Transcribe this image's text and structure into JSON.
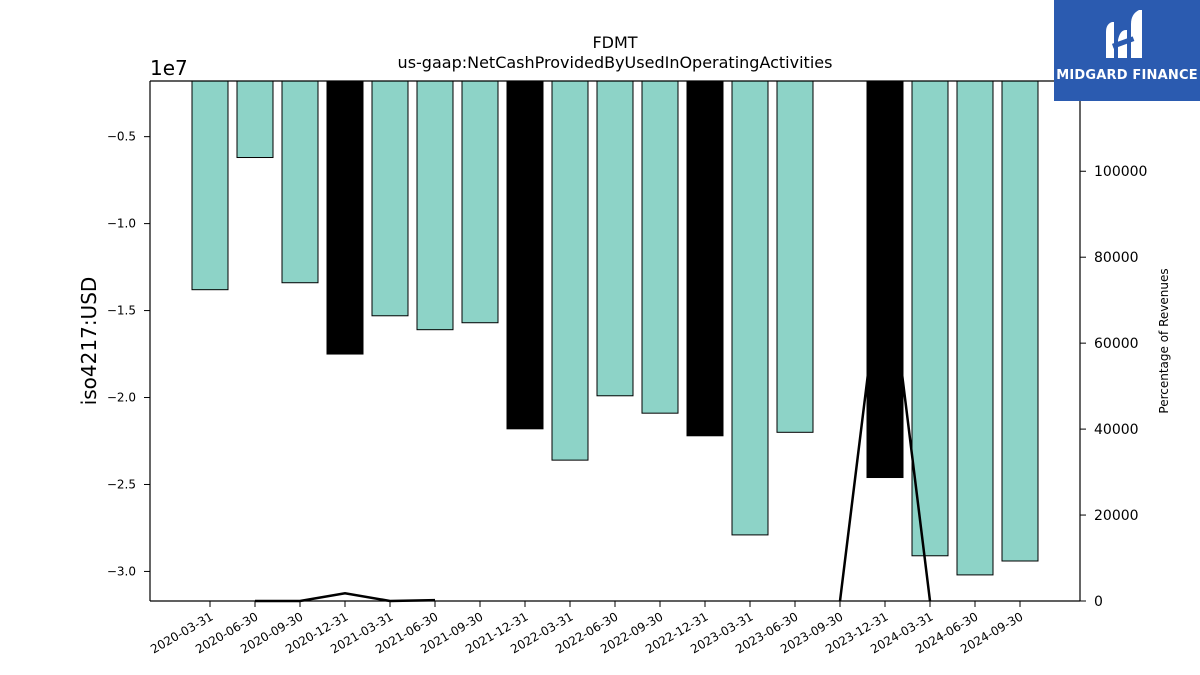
{
  "chart_data": {
    "type": "bar",
    "title": "FDMT",
    "subtitle": "us-gaap:NetCashProvidedByUsedInOperatingActivities",
    "ylabel": "iso4217:USD",
    "y_offset_label": "1e7",
    "y2label": "Percentage of Revenues",
    "categories": [
      "2020-03-31",
      "2020-06-30",
      "2020-09-30",
      "2020-12-31",
      "2021-03-31",
      "2021-06-30",
      "2021-09-30",
      "2021-12-31",
      "2022-03-31",
      "2022-06-30",
      "2022-09-30",
      "2022-12-31",
      "2023-03-31",
      "2023-06-30",
      "2023-09-30",
      "2023-12-31",
      "2024-03-31",
      "2024-06-30",
      "2024-09-30"
    ],
    "values": [
      -13800000,
      -6200000,
      -13400000,
      -17500000,
      -15300000,
      -16100000,
      -15700000,
      -21800000,
      -23600000,
      -19900000,
      -20900000,
      -22200000,
      -27900000,
      -22000000,
      null,
      -24600000,
      -29100000,
      -30200000,
      -29400000
    ],
    "highlight": [
      false,
      false,
      false,
      true,
      false,
      false,
      false,
      true,
      false,
      false,
      false,
      true,
      false,
      false,
      false,
      true,
      false,
      false,
      false
    ],
    "ylim": [
      -31700000,
      -1800000
    ],
    "yticks": [
      -0.5,
      -1.0,
      -1.5,
      -2.0,
      -2.5,
      -3.0
    ],
    "y2_series": {
      "name": "Percentage of Revenues",
      "values": [
        null,
        0,
        0,
        1800,
        0,
        200,
        null,
        null,
        null,
        null,
        null,
        null,
        null,
        null,
        0,
        85000,
        0,
        null,
        null
      ]
    },
    "y2lim": [
      0,
      121000
    ],
    "y2ticks": [
      0,
      20000,
      40000,
      60000,
      80000,
      100000
    ],
    "colors": {
      "bar": "#8dd3c7",
      "bar_highlight": "#000000",
      "line": "#000000"
    }
  },
  "logo": {
    "text": "MIDGARD FINANCE",
    "icon": "midgard-logo-icon",
    "bg": "#2b5bb0"
  }
}
